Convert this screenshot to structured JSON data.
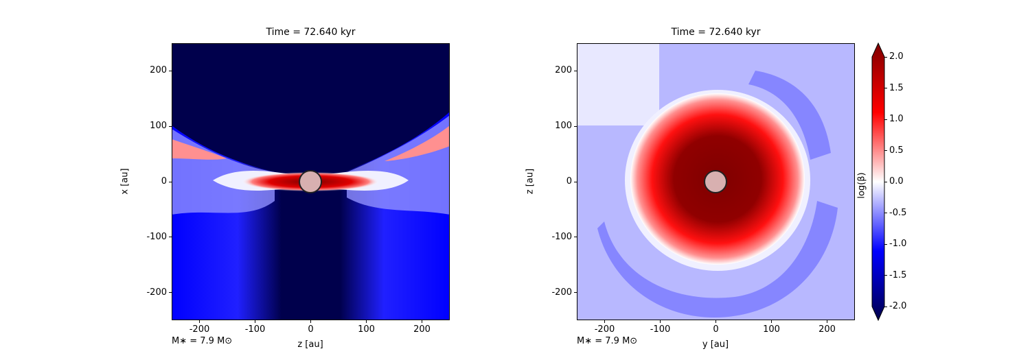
{
  "chart_data": [
    {
      "type": "heatmap",
      "title": "Time = 72.640 kyr",
      "xlabel": "z [au]",
      "ylabel": "x [au]",
      "xlim": [
        -250,
        250
      ],
      "ylim": [
        -250,
        250
      ],
      "xticks": [
        -200,
        -100,
        0,
        100,
        200
      ],
      "yticks": [
        -200,
        -100,
        0,
        100,
        200
      ],
      "annotation": "M∗ = 7.9 M⊙",
      "description_values": "edge-on slice: log(beta) ~ -2 in polar cones, up to ~2 in equatorial disk"
    },
    {
      "type": "heatmap",
      "title": "Time = 72.640 kyr",
      "xlabel": "y [au]",
      "ylabel": "z [au]",
      "xlim": [
        -250,
        250
      ],
      "ylim": [
        -250,
        250
      ],
      "xticks": [
        -200,
        -100,
        0,
        100,
        200
      ],
      "yticks": [
        -200,
        -100,
        0,
        100,
        200
      ],
      "annotation": "M∗ = 7.9 M⊙",
      "description_values": "face-on slice: log(beta) ~ 2 inside r<~100 au, ~ -0.5 outside"
    }
  ],
  "colorbar": {
    "label": "log(β)",
    "range": [
      -2.0,
      2.0
    ],
    "ticks": [
      "-2.0",
      "-1.5",
      "-1.0",
      "-0.5",
      "0.0",
      "0.5",
      "1.0",
      "1.5",
      "2.0"
    ],
    "extend": "both",
    "colors": {
      "min": "#00004c",
      "low": "#0000ff",
      "mid": "#ffffff",
      "high": "#ff0000",
      "max": "#7f0000"
    }
  }
}
